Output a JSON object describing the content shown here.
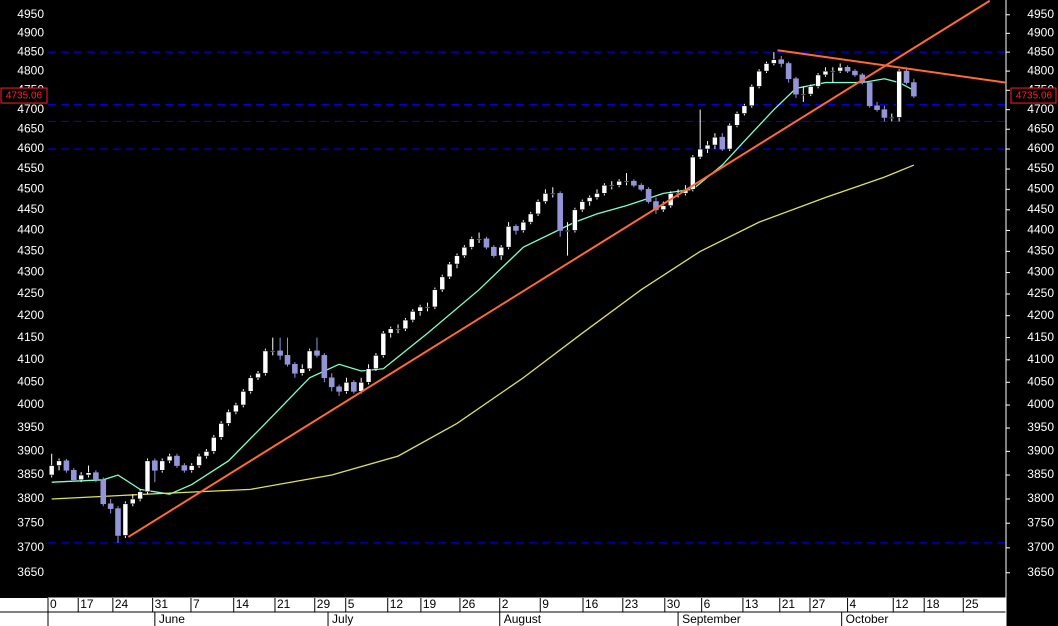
{
  "chart_data": {
    "type": "candlestick",
    "log_scale": true,
    "up_color": "#ffffff",
    "down_color": "#9494d8",
    "xlim": [
      -0.5,
      129.5
    ],
    "ylim": [
      3600,
      4990
    ],
    "yticks": [
      3650,
      3700,
      3750,
      3800,
      3850,
      3900,
      3950,
      4000,
      4050,
      4100,
      4150,
      4200,
      4250,
      4300,
      4350,
      4400,
      4450,
      4500,
      4550,
      4600,
      4650,
      4700,
      4750,
      4800,
      4850,
      4900,
      4950
    ],
    "xticks": [
      {
        "value": -0.5,
        "label": "0"
      },
      {
        "value": 3.6,
        "label": "17"
      },
      {
        "value": 8.3,
        "label": "24"
      },
      {
        "value": 13.7,
        "label": "31"
      },
      {
        "value": 18.9,
        "label": "7"
      },
      {
        "value": 24.7,
        "label": "14"
      },
      {
        "value": 30.3,
        "label": "21"
      },
      {
        "value": 35.7,
        "label": "29"
      },
      {
        "value": 39.9,
        "label": "5"
      },
      {
        "value": 45.6,
        "label": "12"
      },
      {
        "value": 50.1,
        "label": "19"
      },
      {
        "value": 55.4,
        "label": "26"
      },
      {
        "value": 60.8,
        "label": "2"
      },
      {
        "value": 66.3,
        "label": "9"
      },
      {
        "value": 72.1,
        "label": "16"
      },
      {
        "value": 77.5,
        "label": "23"
      },
      {
        "value": 83.2,
        "label": "30"
      },
      {
        "value": 88.2,
        "label": "6"
      },
      {
        "value": 93.8,
        "label": "13"
      },
      {
        "value": 98.8,
        "label": "21"
      },
      {
        "value": 102.9,
        "label": "27"
      },
      {
        "value": 108.0,
        "label": "4"
      },
      {
        "value": 114.2,
        "label": "12"
      },
      {
        "value": 118.4,
        "label": "18"
      },
      {
        "value": 123.7,
        "label": "25"
      }
    ],
    "months": [
      {
        "value": 14.0,
        "label": "June"
      },
      {
        "value": 37.5,
        "label": "July"
      },
      {
        "value": 60.8,
        "label": "August"
      },
      {
        "value": 85.0,
        "label": "September"
      },
      {
        "value": 107.2,
        "label": "October"
      }
    ],
    "last_price": 4735.06,
    "last_price_color": "#ff2020",
    "hlines": {
      "color": "#0000ff",
      "values": [
        4850,
        4713,
        4670,
        4600,
        3710
      ]
    },
    "ohlc": [
      [
        3850,
        3895,
        3845,
        3870
      ],
      [
        3870,
        3885,
        3860,
        3880
      ],
      [
        3880,
        3884,
        3855,
        3860
      ],
      [
        3860,
        3865,
        3835,
        3840
      ],
      [
        3840,
        3856,
        3835,
        3850
      ],
      [
        3850,
        3870,
        3845,
        3855
      ],
      [
        3855,
        3860,
        3835,
        3840
      ],
      [
        3840,
        3845,
        3785,
        3790
      ],
      [
        3790,
        3800,
        3770,
        3780
      ],
      [
        3780,
        3785,
        3710,
        3725
      ],
      [
        3725,
        3795,
        3720,
        3790
      ],
      [
        3790,
        3810,
        3785,
        3800
      ],
      [
        3800,
        3820,
        3795,
        3815
      ],
      [
        3815,
        3885,
        3810,
        3880
      ],
      [
        3880,
        3885,
        3835,
        3860
      ],
      [
        3860,
        3885,
        3855,
        3880
      ],
      [
        3880,
        3895,
        3875,
        3890
      ],
      [
        3890,
        3895,
        3865,
        3870
      ],
      [
        3870,
        3875,
        3855,
        3860
      ],
      [
        3860,
        3875,
        3855,
        3870
      ],
      [
        3870,
        3895,
        3865,
        3890
      ],
      [
        3890,
        3905,
        3885,
        3900
      ],
      [
        3900,
        3935,
        3895,
        3930
      ],
      [
        3930,
        3965,
        3925,
        3960
      ],
      [
        3960,
        3990,
        3955,
        3985
      ],
      [
        3985,
        4005,
        3980,
        4000
      ],
      [
        4000,
        4035,
        3995,
        4030
      ],
      [
        4030,
        4065,
        4025,
        4060
      ],
      [
        4060,
        4075,
        4055,
        4070
      ],
      [
        4070,
        4125,
        4065,
        4120
      ],
      [
        4120,
        4150,
        4110,
        4120
      ],
      [
        4120,
        4150,
        4100,
        4110
      ],
      [
        4110,
        4150,
        4085,
        4090
      ],
      [
        4090,
        4095,
        4060,
        4070
      ],
      [
        4070,
        4090,
        4065,
        4080
      ],
      [
        4080,
        4125,
        4075,
        4120
      ],
      [
        4120,
        4150,
        4105,
        4110
      ],
      [
        4110,
        4115,
        4050,
        4060
      ],
      [
        4060,
        4070,
        4030,
        4040
      ],
      [
        4040,
        4045,
        4020,
        4030
      ],
      [
        4030,
        4060,
        4025,
        4050
      ],
      [
        4050,
        4055,
        4025,
        4030
      ],
      [
        4030,
        4060,
        4025,
        4050
      ],
      [
        4050,
        4090,
        4045,
        4080
      ],
      [
        4080,
        4115,
        4075,
        4110
      ],
      [
        4110,
        4165,
        4105,
        4160
      ],
      [
        4160,
        4175,
        4150,
        4170
      ],
      [
        4170,
        4180,
        4160,
        4170
      ],
      [
        4170,
        4195,
        4165,
        4190
      ],
      [
        4190,
        4215,
        4185,
        4210
      ],
      [
        4210,
        4225,
        4200,
        4220
      ],
      [
        4220,
        4230,
        4210,
        4220
      ],
      [
        4220,
        4265,
        4215,
        4260
      ],
      [
        4260,
        4295,
        4255,
        4290
      ],
      [
        4290,
        4325,
        4285,
        4320
      ],
      [
        4320,
        4345,
        4310,
        4340
      ],
      [
        4340,
        4365,
        4335,
        4360
      ],
      [
        4360,
        4385,
        4355,
        4380
      ],
      [
        4380,
        4395,
        4370,
        4380
      ],
      [
        4380,
        4385,
        4355,
        4360
      ],
      [
        4360,
        4365,
        4335,
        4340
      ],
      [
        4340,
        4365,
        4330,
        4360
      ],
      [
        4360,
        4420,
        4355,
        4410
      ],
      [
        4410,
        4415,
        4390,
        4400
      ],
      [
        4400,
        4425,
        4395,
        4420
      ],
      [
        4420,
        4445,
        4415,
        4440
      ],
      [
        4440,
        4475,
        4435,
        4470
      ],
      [
        4470,
        4500,
        4465,
        4490
      ],
      [
        4490,
        4505,
        4480,
        4490
      ],
      [
        4490,
        4495,
        4385,
        4400
      ],
      [
        4400,
        4420,
        4340,
        4400
      ],
      [
        4400,
        4455,
        4395,
        4450
      ],
      [
        4450,
        4475,
        4445,
        4470
      ],
      [
        4470,
        4485,
        4460,
        4480
      ],
      [
        4480,
        4500,
        4475,
        4490
      ],
      [
        4490,
        4515,
        4485,
        4510
      ],
      [
        4510,
        4520,
        4500,
        4510
      ],
      [
        4510,
        4525,
        4505,
        4520
      ],
      [
        4520,
        4540,
        4510,
        4520
      ],
      [
        4520,
        4525,
        4505,
        4510
      ],
      [
        4510,
        4515,
        4495,
        4500
      ],
      [
        4500,
        4505,
        4465,
        4470
      ],
      [
        4470,
        4480,
        4440,
        4450
      ],
      [
        4450,
        4470,
        4445,
        4460
      ],
      [
        4460,
        4495,
        4455,
        4490
      ],
      [
        4490,
        4500,
        4480,
        4490
      ],
      [
        4490,
        4510,
        4485,
        4500
      ],
      [
        4500,
        4585,
        4495,
        4580
      ],
      [
        4580,
        4700,
        4575,
        4600
      ],
      [
        4600,
        4620,
        4590,
        4610
      ],
      [
        4610,
        4640,
        4600,
        4630
      ],
      [
        4630,
        4640,
        4595,
        4600
      ],
      [
        4600,
        4665,
        4595,
        4660
      ],
      [
        4660,
        4695,
        4655,
        4690
      ],
      [
        4690,
        4715,
        4685,
        4710
      ],
      [
        4710,
        4765,
        4705,
        4760
      ],
      [
        4760,
        4805,
        4755,
        4800
      ],
      [
        4800,
        4825,
        4795,
        4820
      ],
      [
        4820,
        4850,
        4815,
        4830
      ],
      [
        4830,
        4840,
        4810,
        4820
      ],
      [
        4820,
        4825,
        4770,
        4780
      ],
      [
        4780,
        4785,
        4730,
        4740
      ],
      [
        4740,
        4760,
        4720,
        4740
      ],
      [
        4740,
        4765,
        4735,
        4760
      ],
      [
        4760,
        4795,
        4755,
        4790
      ],
      [
        4790,
        4810,
        4785,
        4800
      ],
      [
        4800,
        4810,
        4770,
        4800
      ],
      [
        4800,
        4820,
        4795,
        4810
      ],
      [
        4810,
        4815,
        4795,
        4800
      ],
      [
        4800,
        4805,
        4785,
        4790
      ],
      [
        4790,
        4795,
        4765,
        4770
      ],
      [
        4770,
        4775,
        4705,
        4710
      ],
      [
        4710,
        4720,
        4695,
        4700
      ],
      [
        4700,
        4710,
        4670,
        4680
      ],
      [
        4680,
        4690,
        4670,
        4680
      ],
      [
        4680,
        4805,
        4670,
        4800
      ],
      [
        4800,
        4810,
        4765,
        4770
      ],
      [
        4770,
        4780,
        4730,
        4735
      ]
    ],
    "lines": [
      {
        "color": "#80ffc8",
        "x": [
          0,
          7,
          9,
          12,
          16,
          19,
          24,
          29,
          35,
          39,
          42,
          45,
          51,
          58,
          64,
          71,
          74,
          78,
          83,
          87,
          91,
          94,
          98,
          101,
          105,
          110,
          113,
          115,
          117
        ],
        "values": [
          3835,
          3840,
          3850,
          3820,
          3810,
          3830,
          3880,
          3960,
          4060,
          4090,
          4075,
          4080,
          4160,
          4260,
          4360,
          4420,
          4440,
          4460,
          4490,
          4500,
          4560,
          4620,
          4700,
          4755,
          4770,
          4770,
          4780,
          4770,
          4750
        ]
      },
      {
        "color": "#e0e060",
        "x": [
          0,
          13,
          27,
          38,
          47,
          55,
          64,
          72,
          80,
          88,
          96,
          105,
          113,
          117
        ],
        "values": [
          3800,
          3810,
          3820,
          3850,
          3890,
          3960,
          4060,
          4160,
          4260,
          4350,
          4420,
          4480,
          4530,
          4560
        ]
      }
    ],
    "trendlines": {
      "color": "#ff6a30",
      "items": [
        {
          "x": [
            10.4,
            127.3
          ],
          "values": [
            3722,
            4988
          ]
        },
        {
          "x": [
            98.5,
            129.5
          ],
          "values": [
            4855,
            4770
          ]
        }
      ]
    }
  }
}
